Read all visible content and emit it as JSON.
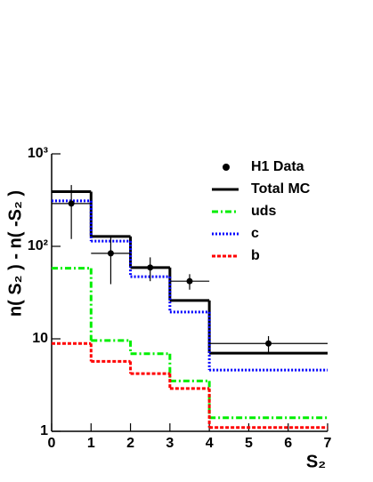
{
  "chart_data": {
    "type": "histogram",
    "x_label": "S₂",
    "y_label": "n( S₂ ) - n( -S₂ )",
    "ylog": true,
    "bins": [
      0,
      1,
      2,
      3,
      4,
      7
    ],
    "xlim": [
      0,
      7
    ],
    "xticks": [
      0,
      1,
      2,
      3,
      4,
      5,
      6,
      7
    ],
    "ylim": [
      1,
      1000
    ],
    "yticks": [
      1,
      10,
      {
        "value": 100,
        "label": "10²"
      },
      {
        "value": 1000,
        "label": "10³"
      }
    ],
    "legend": "top-right",
    "data_points": {
      "name": "H1 Data",
      "color": "#000000",
      "x": [
        0.5,
        1.5,
        2.5,
        3.5,
        5.5
      ],
      "xerr": [
        0.5,
        0.5,
        0.5,
        0.5,
        1.5
      ],
      "values": [
        290,
        84,
        59,
        42,
        8.9
      ],
      "yerr": [
        170,
        45,
        17,
        8,
        1.8
      ]
    },
    "series": [
      {
        "name": "Total MC",
        "color": "#000000",
        "dash": "none",
        "values": [
          390,
          128,
          59,
          26,
          7
        ]
      },
      {
        "name": "uds",
        "color": "#00ee00",
        "dash": "7,3,2,3",
        "values": [
          58,
          9.6,
          6.9,
          3.5,
          1.4
        ]
      },
      {
        "name": "c",
        "color": "#0000ff",
        "dash": "2,2",
        "values": [
          310,
          114,
          47,
          19.5,
          4.6
        ]
      },
      {
        "name": "b",
        "color": "#ff0000",
        "dash": "4,2",
        "values": [
          8.9,
          5.7,
          4.2,
          2.9,
          1.1
        ]
      }
    ]
  }
}
